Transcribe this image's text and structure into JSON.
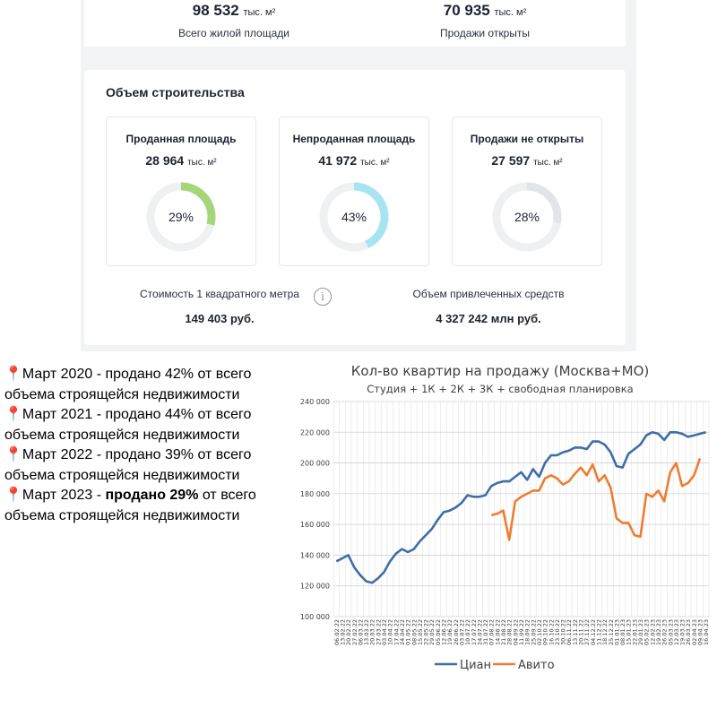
{
  "top_metrics": [
    {
      "value": "98 532",
      "unit": "тыс. м²",
      "label": "Всего жилой площади"
    },
    {
      "value": "70 935",
      "unit": "тыс. м²",
      "label": "Продажи открыты"
    }
  ],
  "section_title": "Объем строительства",
  "gauges": [
    {
      "title": "Проданная площадь",
      "value": "28 964",
      "unit": "тыс. м²",
      "percent_label": "29%",
      "fraction": 0.29,
      "color": "#a3d77a"
    },
    {
      "title": "Непроданная площадь",
      "value": "41 972",
      "unit": "тыс. м²",
      "percent_label": "43%",
      "fraction": 0.43,
      "color": "#a7e4f2"
    },
    {
      "title": "Продажи не открыты",
      "value": "27 597",
      "unit": "тыс. м²",
      "percent_label": "28%",
      "fraction": 0.28,
      "color": "#e2e5e8"
    }
  ],
  "stats": {
    "price_label": "Стоимость 1 квадратного метра",
    "price_value": "149 403 руб.",
    "funds_label": "Объем привлеченных средств",
    "funds_value": "4 327 242 млн руб.",
    "info_glyph": "i"
  },
  "notes": [
    {
      "pin": "📍",
      "before": "Март 2020 - продано 42% от всего объема строящейся недвижимости",
      "bold": "",
      "after": ""
    },
    {
      "pin": "📍",
      "before": "Март 2021 - продано 44% от всего объема строящейся недвижимости",
      "bold": "",
      "after": ""
    },
    {
      "pin": "📍",
      "before": "Март 2022 - продано 39% от всего объема строящейся недвижимости",
      "bold": "",
      "after": ""
    },
    {
      "pin": "📍",
      "before": "Март 2023 - ",
      "bold": "продано 29%",
      "after": " от всего объема строящейся недвижимости"
    }
  ],
  "chart_data": {
    "type": "line",
    "title": "Кол-во квартир на продажу (Москва+МО)",
    "subtitle": "Студия + 1К + 2К + 3К + свободная планировка",
    "ylim": [
      100000,
      240000
    ],
    "y_ticks": [
      "100 000",
      "120 000",
      "140 000",
      "160 000",
      "180 000",
      "200 000",
      "220 000",
      "240 000"
    ],
    "grid": true,
    "legend_position": "bottom",
    "series": [
      {
        "name": "Циан",
        "color": "#3f6ea6",
        "start_index": 0,
        "values": [
          136000,
          138000,
          140000,
          132000,
          127000,
          123000,
          122000,
          125000,
          129000,
          136000,
          141000,
          144000,
          142000,
          144000,
          149000,
          153000,
          157000,
          163000,
          168000,
          169000,
          171000,
          174000,
          179000,
          178000,
          178000,
          179000,
          185000,
          187000,
          188000,
          188000,
          191000,
          194000,
          189000,
          196000,
          191000,
          200000,
          205000,
          205000,
          207000,
          208000,
          210000,
          210000,
          209000,
          214000,
          214000,
          212000,
          207000,
          198000,
          197000,
          206000,
          209000,
          212000,
          218000,
          220000,
          219000,
          215000,
          220000,
          220000,
          219000,
          217000,
          218000,
          219000,
          220000
        ]
      },
      {
        "name": "Авито",
        "color": "#ed7d31",
        "start_index": 26,
        "values": [
          166000,
          167000,
          169000,
          150000,
          175000,
          178000,
          180000,
          182000,
          182000,
          190000,
          192000,
          190000,
          186000,
          188000,
          193000,
          197000,
          192000,
          199000,
          188000,
          192000,
          184000,
          164000,
          161000,
          161000,
          153000,
          152000,
          180000,
          178000,
          182000,
          175000,
          194000,
          200000,
          185000,
          187000,
          192000,
          203000
        ]
      }
    ],
    "x_labels": [
      "06.02.22",
      "13.02.22",
      "20.02.22",
      "27.02.22",
      "06.03.22",
      "13.03.22",
      "20.03.22",
      "27.03.22",
      "03.04.22",
      "10.04.22",
      "17.04.22",
      "24.04.22",
      "01.05.22",
      "08.05.22",
      "15.05.22",
      "22.05.22",
      "29.05.22",
      "05.06.22",
      "12.06.22",
      "19.06.22",
      "26.06.22",
      "03.07.22",
      "10.07.22",
      "17.07.22",
      "24.07.22",
      "31.07.22",
      "07.08.22",
      "14.08.22",
      "21.08.22",
      "28.08.22",
      "04.09.22",
      "11.09.22",
      "18.09.22",
      "25.09.22",
      "02.10.22",
      "09.10.22",
      "16.10.22",
      "23.10.22",
      "30.10.22",
      "06.11.22",
      "13.11.22",
      "20.11.22",
      "27.11.22",
      "04.12.22",
      "11.12.22",
      "18.12.22",
      "25.12.22",
      "01.01.23",
      "08.01.23",
      "15.01.23",
      "22.01.23",
      "29.01.23",
      "05.02.23",
      "12.02.23",
      "19.02.23",
      "26.02.23",
      "05.03.23",
      "12.03.23",
      "19.03.23",
      "26.03.23",
      "02.04.23",
      "09.04.23",
      "16.04.23"
    ]
  }
}
